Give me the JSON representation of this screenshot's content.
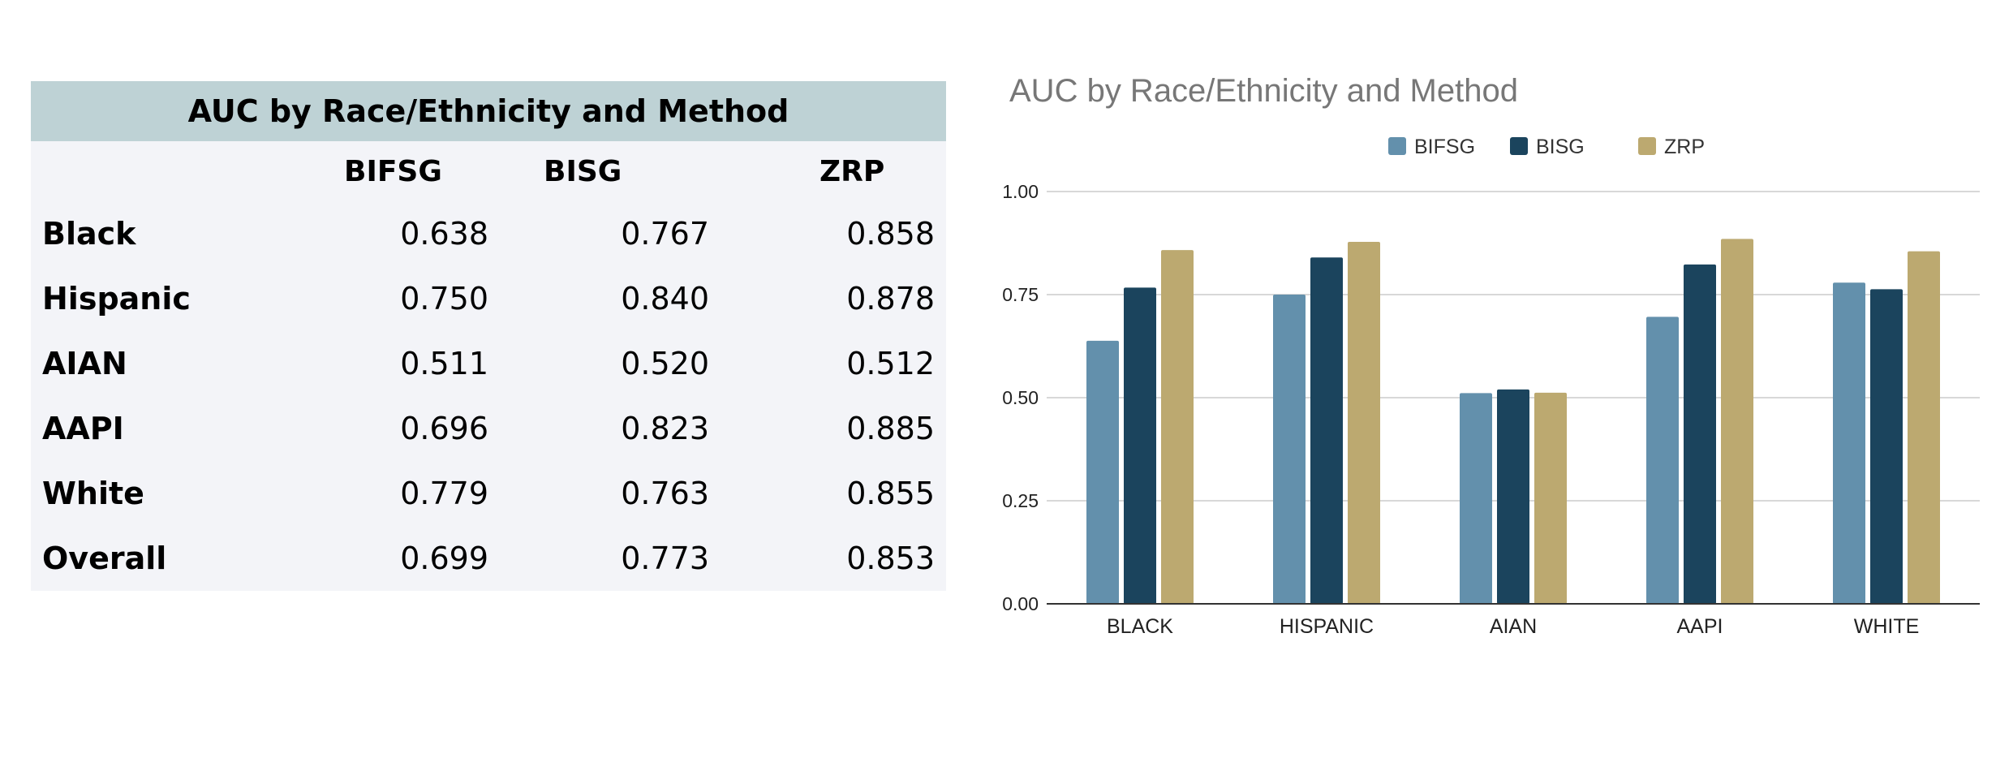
{
  "table": {
    "title": "AUC by Race/Ethnicity and Method",
    "columns": [
      "BIFSG",
      "BISG",
      "ZRP"
    ],
    "rows": [
      {
        "label": "Black",
        "values": [
          "0.638",
          "0.767",
          "0.858"
        ]
      },
      {
        "label": "Hispanic",
        "values": [
          "0.750",
          "0.840",
          "0.878"
        ]
      },
      {
        "label": "AIAN",
        "values": [
          "0.511",
          "0.520",
          "0.512"
        ]
      },
      {
        "label": "AAPI",
        "values": [
          "0.696",
          "0.823",
          "0.885"
        ]
      },
      {
        "label": "White",
        "values": [
          "0.779",
          "0.763",
          "0.855"
        ]
      },
      {
        "label": "Overall",
        "values": [
          "0.699",
          "0.773",
          "0.853"
        ]
      }
    ]
  },
  "chart_data": {
    "type": "bar",
    "title": "AUC by Race/Ethnicity and Method",
    "xlabel": "",
    "ylabel": "",
    "categories": [
      "BLACK",
      "HISPANIC",
      "AIAN",
      "AAPI",
      "WHITE"
    ],
    "series": [
      {
        "name": "BIFSG",
        "color": "#6390ac",
        "values": [
          0.638,
          0.75,
          0.511,
          0.696,
          0.779
        ]
      },
      {
        "name": "BISG",
        "color": "#1b445d",
        "values": [
          0.767,
          0.84,
          0.52,
          0.823,
          0.763
        ]
      },
      {
        "name": "ZRP",
        "color": "#bca970",
        "values": [
          0.858,
          0.878,
          0.512,
          0.885,
          0.855
        ]
      }
    ],
    "ylim": [
      0,
      1
    ],
    "yticks": [
      "0.00",
      "0.25",
      "0.50",
      "0.75",
      "1.00"
    ],
    "grid": true,
    "legend": "top-center"
  }
}
